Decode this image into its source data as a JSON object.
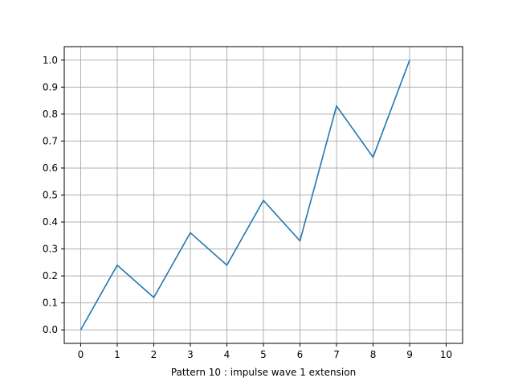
{
  "chart_data": {
    "type": "line",
    "title": "",
    "xlabel": "Pattern 10 :  impulse wave 1 extension",
    "ylabel": "",
    "xlim": [
      -0.45,
      10.45
    ],
    "ylim": [
      -0.05,
      1.05
    ],
    "xticks": [
      0,
      1,
      2,
      3,
      4,
      5,
      6,
      7,
      8,
      9,
      10
    ],
    "yticks": [
      0.0,
      0.1,
      0.2,
      0.3,
      0.4,
      0.5,
      0.6,
      0.7,
      0.8,
      0.9,
      1.0
    ],
    "xtick_labels": [
      "0",
      "1",
      "2",
      "3",
      "4",
      "5",
      "6",
      "7",
      "8",
      "9",
      "10"
    ],
    "ytick_labels": [
      "0.0",
      "0.1",
      "0.2",
      "0.3",
      "0.4",
      "0.5",
      "0.6",
      "0.7",
      "0.8",
      "0.9",
      "1.0"
    ],
    "grid": true,
    "series": [
      {
        "x": [
          0,
          1,
          2,
          3,
          4,
          5,
          6,
          7,
          8,
          9
        ],
        "values": [
          0.0,
          0.24,
          0.12,
          0.36,
          0.24,
          0.48,
          0.33,
          0.83,
          0.64,
          1.0
        ],
        "color": "#1f77b4"
      }
    ],
    "grid_color": "#b0b0b0"
  }
}
